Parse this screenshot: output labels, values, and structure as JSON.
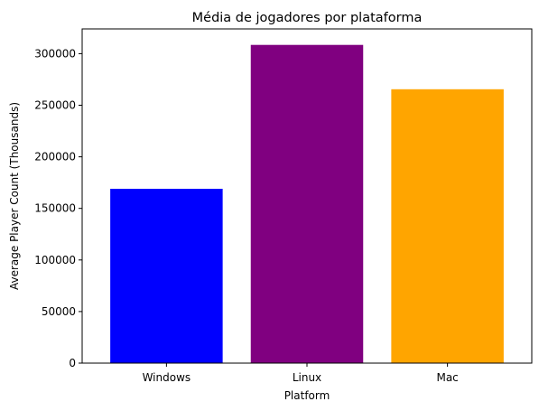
{
  "chart_data": {
    "type": "bar",
    "title": "Média de jogadores por plataforma",
    "xlabel": "Platform",
    "ylabel": "Average Player Count (Thousands)",
    "categories": [
      "Windows",
      "Linux",
      "Mac"
    ],
    "values": [
      169000,
      308500,
      265500
    ],
    "colors": [
      "#0000ff",
      "#800080",
      "#ffa500"
    ],
    "ylim": [
      0,
      324000
    ],
    "yticks": [
      0,
      50000,
      100000,
      150000,
      200000,
      250000,
      300000
    ],
    "grid": false,
    "legend": "none"
  }
}
